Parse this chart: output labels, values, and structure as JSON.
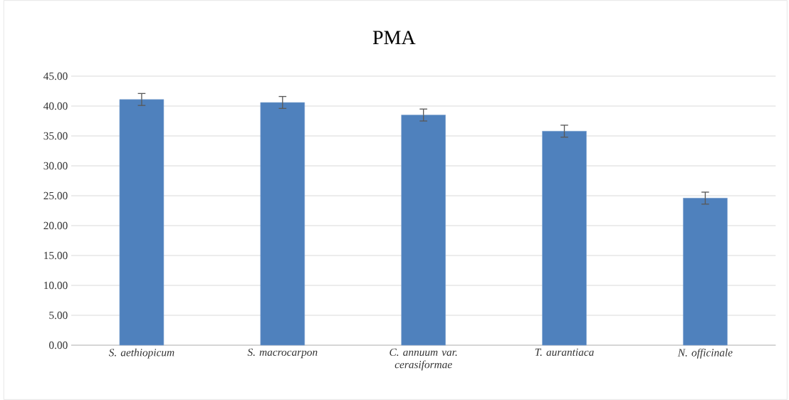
{
  "chart_data": {
    "type": "bar",
    "title": "PMA",
    "categories": [
      "S. aethiopicum",
      "S. macrocarpon",
      "C. annuum var. cerasiformae",
      "T. aurantiaca",
      "N. officinale"
    ],
    "values": [
      41.1,
      40.6,
      38.5,
      35.8,
      24.6
    ],
    "errors": [
      1.0,
      1.0,
      1.0,
      1.0,
      1.0
    ],
    "color": "#4f81bd",
    "ylim": [
      0,
      45
    ],
    "yticks": [
      {
        "value": 0,
        "label": "0.00"
      },
      {
        "value": 5,
        "label": "5.00"
      },
      {
        "value": 10,
        "label": "10.00"
      },
      {
        "value": 15,
        "label": "15.00"
      },
      {
        "value": 20,
        "label": "20.00"
      },
      {
        "value": 25,
        "label": "25.00"
      },
      {
        "value": 30,
        "label": "30.00"
      },
      {
        "value": 35,
        "label": "35.00"
      },
      {
        "value": 40,
        "label": "40.00"
      },
      {
        "value": 45,
        "label": "45.00"
      }
    ],
    "grid": "y"
  }
}
